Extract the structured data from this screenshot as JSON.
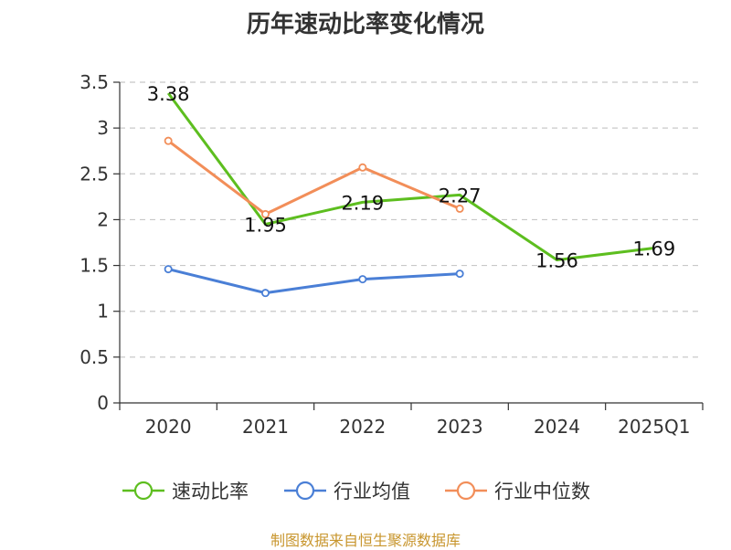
{
  "chart_data": {
    "type": "line",
    "title": "历年速动比率变化情况",
    "categories": [
      "2020",
      "2021",
      "2022",
      "2023",
      "2024",
      "2025Q1"
    ],
    "y_ticks": [
      "0",
      "0.5",
      "1",
      "1.5",
      "2",
      "2.5",
      "3",
      "3.5"
    ],
    "ylim": [
      0,
      3.5
    ],
    "grid": true,
    "legend_position": "bottom",
    "series": [
      {
        "name": "速动比率",
        "color": "#5dbe1f",
        "values": [
          3.38,
          1.95,
          2.19,
          2.27,
          1.56,
          1.69
        ],
        "labels": [
          "3.38",
          "1.95",
          "2.19",
          "2.27",
          "1.56",
          "1.69"
        ],
        "markers": false
      },
      {
        "name": "行业均值",
        "color": "#4a7fd6",
        "values": [
          1.46,
          1.2,
          1.35,
          1.41,
          null,
          null
        ],
        "labels": null,
        "markers": true
      },
      {
        "name": "行业中位数",
        "color": "#f28e59",
        "values": [
          2.86,
          2.06,
          2.57,
          2.12,
          null,
          null
        ],
        "labels": null,
        "markers": true
      }
    ]
  },
  "footer": {
    "source": "制图数据来自恒生聚源数据库"
  }
}
